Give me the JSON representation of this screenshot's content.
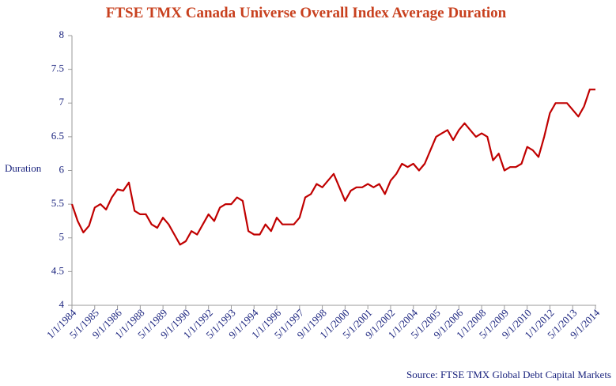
{
  "chart_data": {
    "type": "line",
    "title": "FTSE TMX Canada Universe Overall Index Average Duration",
    "y_label": "Duration",
    "source": "Source: FTSE TMX Global Debt Capital Markets",
    "categories": [
      "1/1/1984",
      null,
      null,
      null,
      "5/1/1985",
      null,
      null,
      null,
      "9/1/1986",
      null,
      null,
      null,
      "1/1/1988",
      null,
      null,
      null,
      "5/1/1989",
      null,
      null,
      null,
      "9/1/1990",
      null,
      null,
      null,
      "1/1/1992",
      null,
      null,
      null,
      "5/1/1993",
      null,
      null,
      null,
      "9/1/1994",
      null,
      null,
      null,
      "1/1/1996",
      null,
      null,
      null,
      "5/1/1997",
      null,
      null,
      null,
      "9/1/1998",
      null,
      null,
      null,
      "1/1/2000",
      null,
      null,
      null,
      "5/1/2001",
      null,
      null,
      null,
      "9/1/2002",
      null,
      null,
      null,
      "1/1/2004",
      null,
      null,
      null,
      "5/1/2005",
      null,
      null,
      null,
      "9/1/2006",
      null,
      null,
      null,
      "1/1/2008",
      null,
      null,
      null,
      "5/1/2009",
      null,
      null,
      null,
      "9/1/2010",
      null,
      null,
      null,
      "1/1/2012",
      null,
      null,
      null,
      "5/1/2013",
      null,
      null,
      null,
      "9/1/2014"
    ],
    "series": [
      {
        "name": "Duration",
        "color": "#c00000",
        "values": [
          5.5,
          5.25,
          5.08,
          5.18,
          5.45,
          5.5,
          5.42,
          5.6,
          5.72,
          5.7,
          5.82,
          5.4,
          5.35,
          5.35,
          5.2,
          5.15,
          5.3,
          5.2,
          5.05,
          4.9,
          4.95,
          5.1,
          5.05,
          5.2,
          5.35,
          5.25,
          5.45,
          5.5,
          5.5,
          5.6,
          5.55,
          5.1,
          5.05,
          5.05,
          5.2,
          5.1,
          5.3,
          5.2,
          5.2,
          5.2,
          5.3,
          5.6,
          5.65,
          5.8,
          5.75,
          5.85,
          5.95,
          5.75,
          5.55,
          5.7,
          5.75,
          5.75,
          5.8,
          5.75,
          5.8,
          5.65,
          5.85,
          5.95,
          6.1,
          6.05,
          6.1,
          6.0,
          6.1,
          6.3,
          6.5,
          6.55,
          6.6,
          6.45,
          6.6,
          6.7,
          6.6,
          6.5,
          6.55,
          6.5,
          6.15,
          6.25,
          6.0,
          6.05,
          6.05,
          6.1,
          6.35,
          6.3,
          6.2,
          6.5,
          6.85,
          7.0,
          7.0,
          7.0,
          6.9,
          6.8,
          6.95,
          7.2,
          7.2
        ]
      }
    ],
    "ylim": [
      4,
      8
    ],
    "yticks": [
      4,
      4.5,
      5,
      5.5,
      6,
      6.5,
      7,
      7.5,
      8
    ]
  }
}
